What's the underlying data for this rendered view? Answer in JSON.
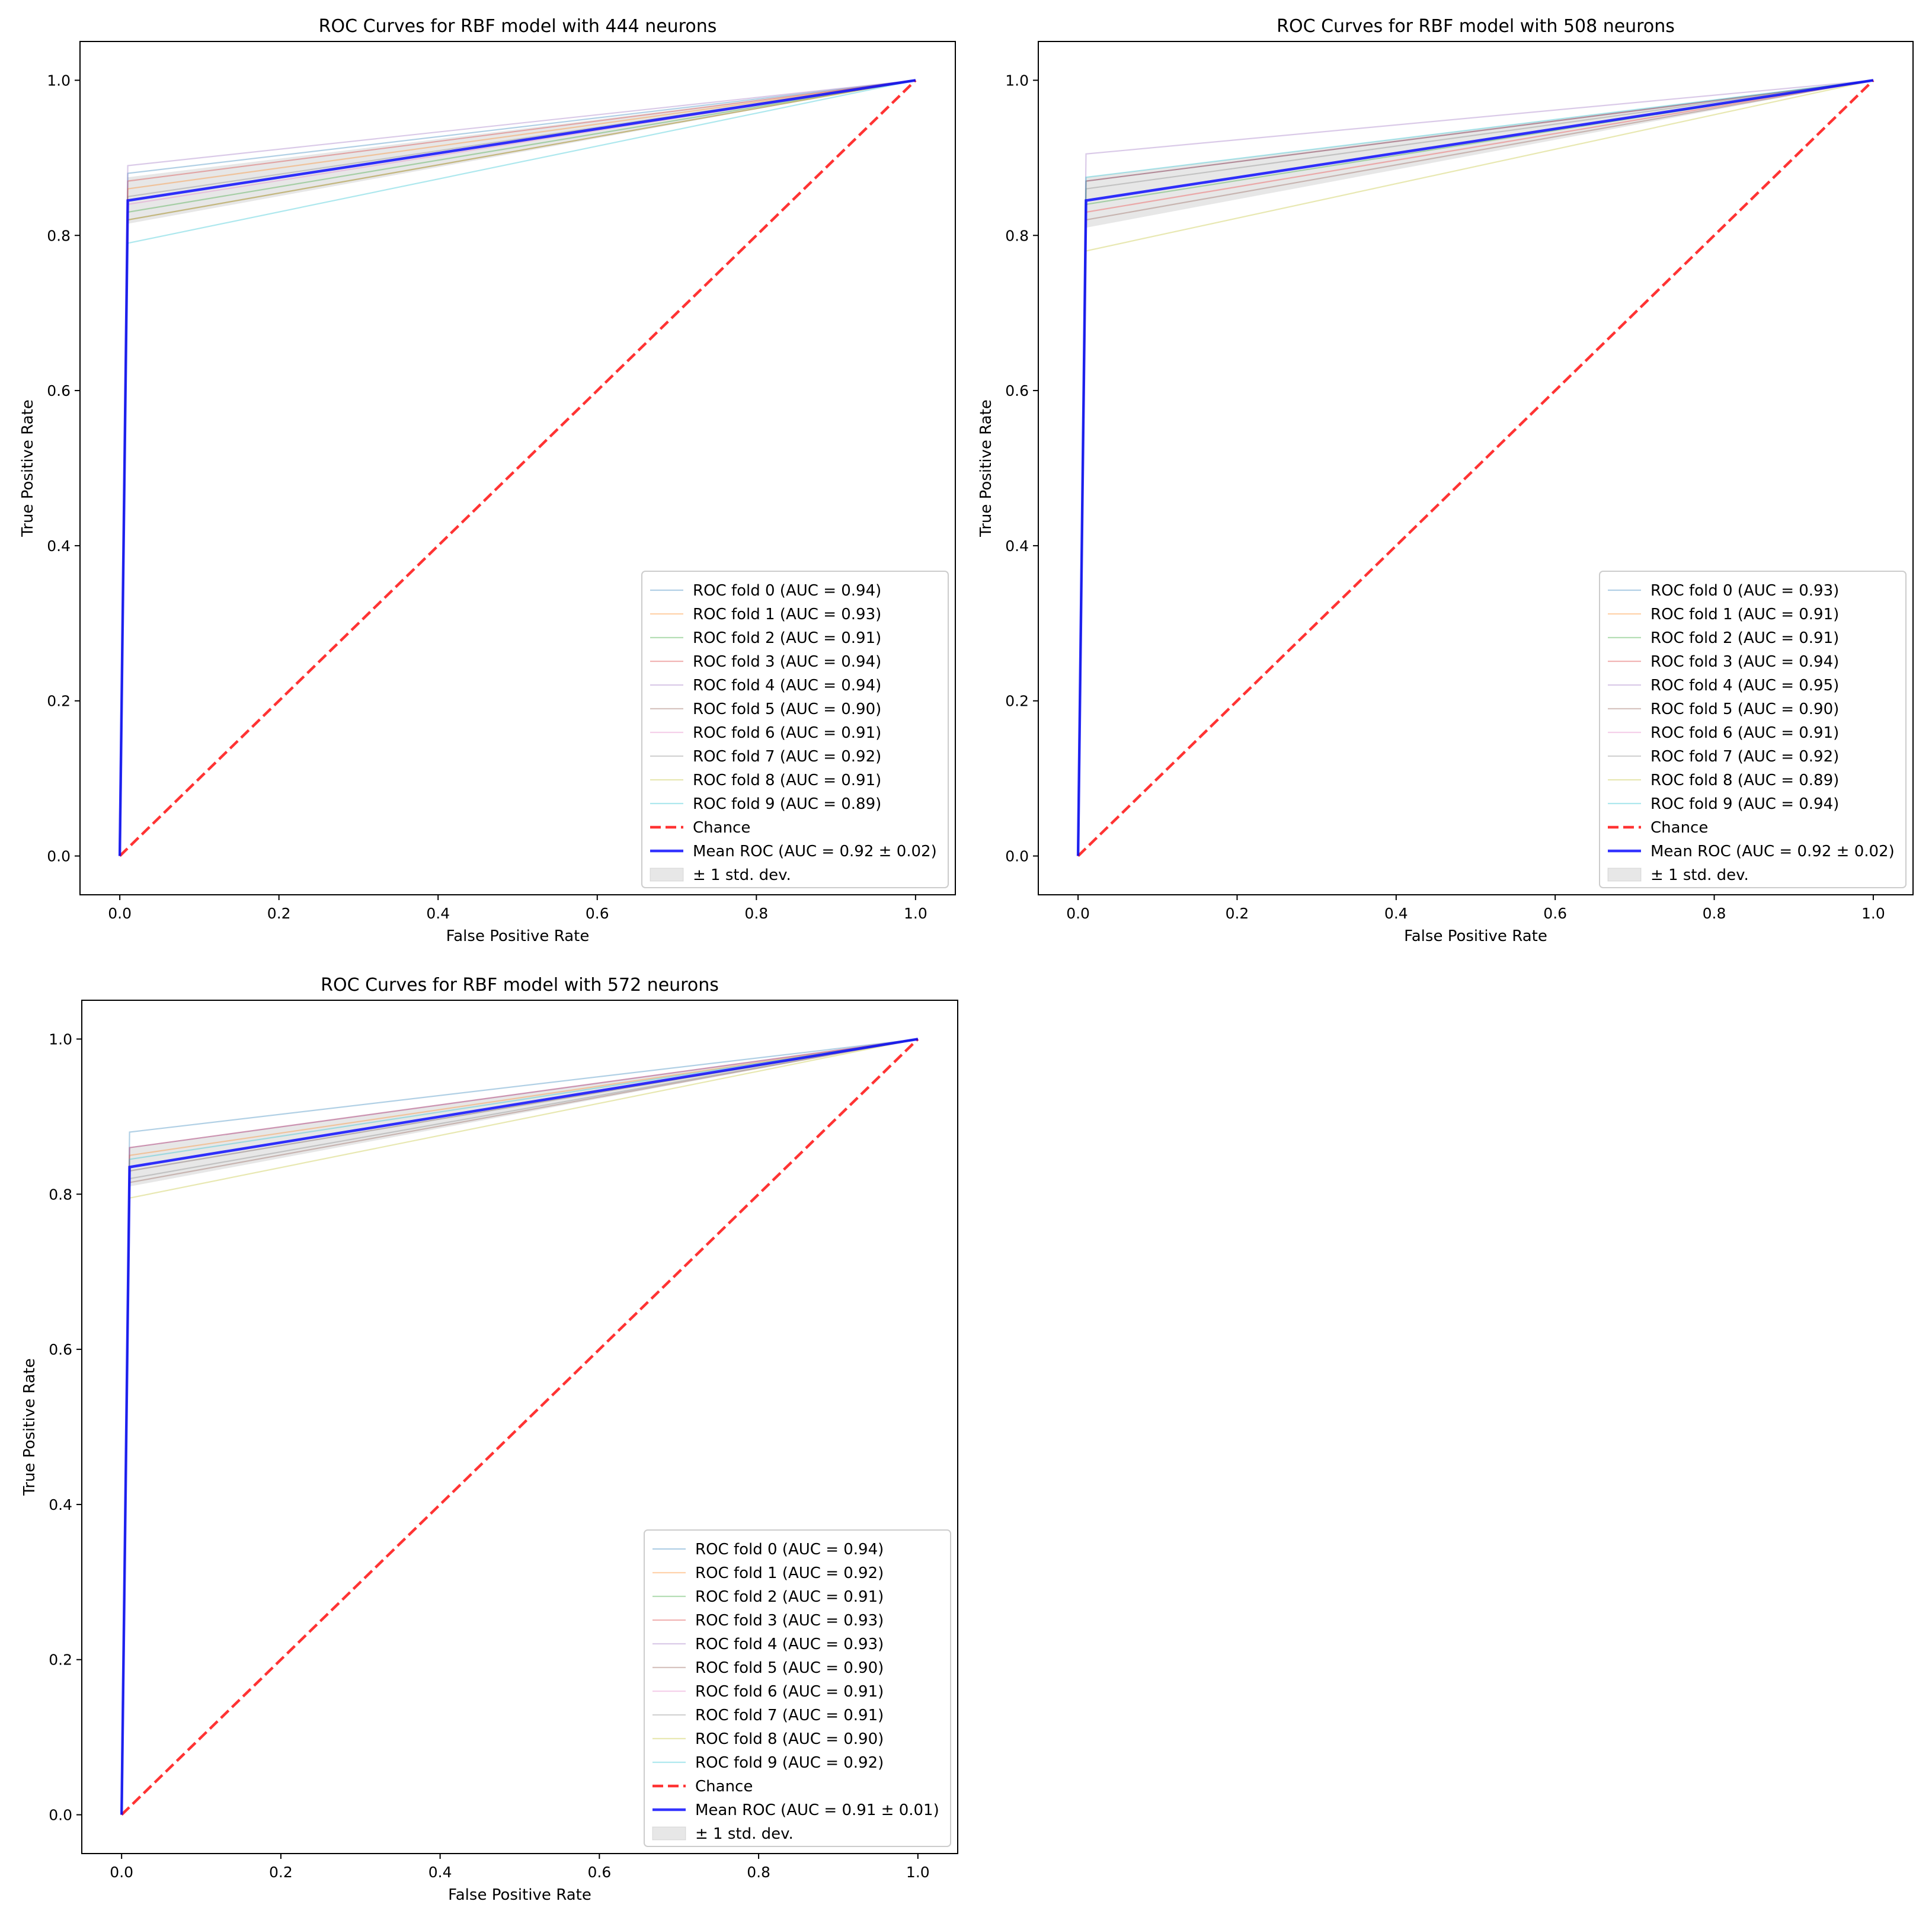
{
  "colors": {
    "folds": [
      "#1f77b4",
      "#ff7f0e",
      "#2ca02c",
      "#d62728",
      "#9467bd",
      "#8c564b",
      "#e377c2",
      "#7f7f7f",
      "#bcbd22",
      "#17becf"
    ],
    "chance": "#ff0000",
    "mean": "#0000ff",
    "band": "#bbbbbb",
    "axes": "#000000"
  },
  "chart_data": [
    {
      "type": "line",
      "title": "ROC Curves for RBF model with 444 neurons",
      "xlabel": "False Positive Rate",
      "ylabel": "True Positive Rate",
      "xlim": [
        -0.05,
        1.05
      ],
      "ylim": [
        -0.05,
        1.05
      ],
      "xticks": [
        "0.0",
        "0.2",
        "0.4",
        "0.6",
        "0.8",
        "1.0"
      ],
      "yticks": [
        "0.0",
        "0.2",
        "0.4",
        "0.6",
        "0.8",
        "1.0"
      ],
      "legend_position": "lower-right",
      "folds": [
        {
          "label": "ROC fold 0 (AUC = 0.94)",
          "fpr": [
            0,
            0.01,
            1
          ],
          "tpr": [
            0,
            0.88,
            1
          ]
        },
        {
          "label": "ROC fold 1 (AUC = 0.93)",
          "fpr": [
            0,
            0.01,
            1
          ],
          "tpr": [
            0,
            0.86,
            1
          ]
        },
        {
          "label": "ROC fold 2 (AUC = 0.91)",
          "fpr": [
            0,
            0.01,
            1
          ],
          "tpr": [
            0,
            0.83,
            1
          ]
        },
        {
          "label": "ROC fold 3 (AUC = 0.94)",
          "fpr": [
            0,
            0.01,
            1
          ],
          "tpr": [
            0,
            0.87,
            1
          ]
        },
        {
          "label": "ROC fold 4 (AUC = 0.94)",
          "fpr": [
            0,
            0.01,
            1
          ],
          "tpr": [
            0,
            0.89,
            1
          ]
        },
        {
          "label": "ROC fold 5 (AUC = 0.90)",
          "fpr": [
            0,
            0.01,
            1
          ],
          "tpr": [
            0,
            0.82,
            1
          ]
        },
        {
          "label": "ROC fold 6 (AUC = 0.91)",
          "fpr": [
            0,
            0.01,
            1
          ],
          "tpr": [
            0,
            0.84,
            1
          ]
        },
        {
          "label": "ROC fold 7 (AUC = 0.92)",
          "fpr": [
            0,
            0.01,
            1
          ],
          "tpr": [
            0,
            0.85,
            1
          ]
        },
        {
          "label": "ROC fold 8 (AUC = 0.91)",
          "fpr": [
            0,
            0.01,
            1
          ],
          "tpr": [
            0,
            0.82,
            1
          ]
        },
        {
          "label": "ROC fold 9 (AUC = 0.89)",
          "fpr": [
            0,
            0.01,
            1
          ],
          "tpr": [
            0,
            0.79,
            1
          ]
        }
      ],
      "chance": {
        "label": "Chance",
        "x": [
          0,
          1
        ],
        "y": [
          0,
          1
        ]
      },
      "mean": {
        "label": "Mean ROC (AUC = 0.92 ± 0.02)",
        "fpr": [
          0,
          0.01,
          1
        ],
        "tpr": [
          0,
          0.845,
          1
        ]
      },
      "band": {
        "label": "± 1 std. dev.",
        "fpr": [
          0,
          0.01,
          1
        ],
        "upper": [
          0,
          0.875,
          1
        ],
        "lower": [
          0,
          0.815,
          1
        ]
      }
    },
    {
      "type": "line",
      "title": "ROC Curves for RBF model with 508 neurons",
      "xlabel": "False Positive Rate",
      "ylabel": "True Positive Rate",
      "xlim": [
        -0.05,
        1.05
      ],
      "ylim": [
        -0.05,
        1.05
      ],
      "xticks": [
        "0.0",
        "0.2",
        "0.4",
        "0.6",
        "0.8",
        "1.0"
      ],
      "yticks": [
        "0.0",
        "0.2",
        "0.4",
        "0.6",
        "0.8",
        "1.0"
      ],
      "legend_position": "lower-right",
      "folds": [
        {
          "label": "ROC fold 0 (AUC = 0.93)",
          "fpr": [
            0,
            0.01,
            1
          ],
          "tpr": [
            0,
            0.87,
            1
          ]
        },
        {
          "label": "ROC fold 1 (AUC = 0.91)",
          "fpr": [
            0,
            0.01,
            1
          ],
          "tpr": [
            0,
            0.83,
            1
          ]
        },
        {
          "label": "ROC fold 2 (AUC = 0.91)",
          "fpr": [
            0,
            0.01,
            1
          ],
          "tpr": [
            0,
            0.84,
            1
          ]
        },
        {
          "label": "ROC fold 3 (AUC = 0.94)",
          "fpr": [
            0,
            0.01,
            1
          ],
          "tpr": [
            0,
            0.87,
            1
          ]
        },
        {
          "label": "ROC fold 4 (AUC = 0.95)",
          "fpr": [
            0,
            0.01,
            1
          ],
          "tpr": [
            0,
            0.905,
            1
          ]
        },
        {
          "label": "ROC fold 5 (AUC = 0.90)",
          "fpr": [
            0,
            0.01,
            1
          ],
          "tpr": [
            0,
            0.82,
            1
          ]
        },
        {
          "label": "ROC fold 6 (AUC = 0.91)",
          "fpr": [
            0,
            0.01,
            1
          ],
          "tpr": [
            0,
            0.83,
            1
          ]
        },
        {
          "label": "ROC fold 7 (AUC = 0.92)",
          "fpr": [
            0,
            0.01,
            1
          ],
          "tpr": [
            0,
            0.86,
            1
          ]
        },
        {
          "label": "ROC fold 8 (AUC = 0.89)",
          "fpr": [
            0,
            0.01,
            1
          ],
          "tpr": [
            0,
            0.78,
            1
          ]
        },
        {
          "label": "ROC fold 9 (AUC = 0.94)",
          "fpr": [
            0,
            0.01,
            1
          ],
          "tpr": [
            0,
            0.875,
            1
          ]
        }
      ],
      "chance": {
        "label": "Chance",
        "x": [
          0,
          1
        ],
        "y": [
          0,
          1
        ]
      },
      "mean": {
        "label": "Mean ROC (AUC = 0.92 ± 0.02)",
        "fpr": [
          0,
          0.01,
          1
        ],
        "tpr": [
          0,
          0.845,
          1
        ]
      },
      "band": {
        "label": "± 1 std. dev.",
        "fpr": [
          0,
          0.01,
          1
        ],
        "upper": [
          0,
          0.875,
          1
        ],
        "lower": [
          0,
          0.81,
          1
        ]
      }
    },
    {
      "type": "line",
      "title": "ROC Curves for RBF model with 572 neurons",
      "xlabel": "False Positive Rate",
      "ylabel": "True Positive Rate",
      "xlim": [
        -0.05,
        1.05
      ],
      "ylim": [
        -0.05,
        1.05
      ],
      "xticks": [
        "0.0",
        "0.2",
        "0.4",
        "0.6",
        "0.8",
        "1.0"
      ],
      "yticks": [
        "0.0",
        "0.2",
        "0.4",
        "0.6",
        "0.8",
        "1.0"
      ],
      "legend_position": "lower-right",
      "folds": [
        {
          "label": "ROC fold 0 (AUC = 0.94)",
          "fpr": [
            0,
            0.01,
            1
          ],
          "tpr": [
            0,
            0.88,
            1
          ]
        },
        {
          "label": "ROC fold 1 (AUC = 0.92)",
          "fpr": [
            0,
            0.01,
            1
          ],
          "tpr": [
            0,
            0.85,
            1
          ]
        },
        {
          "label": "ROC fold 2 (AUC = 0.91)",
          "fpr": [
            0,
            0.01,
            1
          ],
          "tpr": [
            0,
            0.83,
            1
          ]
        },
        {
          "label": "ROC fold 3 (AUC = 0.93)",
          "fpr": [
            0,
            0.01,
            1
          ],
          "tpr": [
            0,
            0.86,
            1
          ]
        },
        {
          "label": "ROC fold 4 (AUC = 0.93)",
          "fpr": [
            0,
            0.01,
            1
          ],
          "tpr": [
            0,
            0.86,
            1
          ]
        },
        {
          "label": "ROC fold 5 (AUC = 0.90)",
          "fpr": [
            0,
            0.01,
            1
          ],
          "tpr": [
            0,
            0.815,
            1
          ]
        },
        {
          "label": "ROC fold 6 (AUC = 0.91)",
          "fpr": [
            0,
            0.01,
            1
          ],
          "tpr": [
            0,
            0.83,
            1
          ]
        },
        {
          "label": "ROC fold 7 (AUC = 0.91)",
          "fpr": [
            0,
            0.01,
            1
          ],
          "tpr": [
            0,
            0.82,
            1
          ]
        },
        {
          "label": "ROC fold 8 (AUC = 0.90)",
          "fpr": [
            0,
            0.01,
            1
          ],
          "tpr": [
            0,
            0.795,
            1
          ]
        },
        {
          "label": "ROC fold 9 (AUC = 0.92)",
          "fpr": [
            0,
            0.01,
            1
          ],
          "tpr": [
            0,
            0.845,
            1
          ]
        }
      ],
      "chance": {
        "label": "Chance",
        "x": [
          0,
          1
        ],
        "y": [
          0,
          1
        ]
      },
      "mean": {
        "label": "Mean ROC (AUC = 0.91 ± 0.01)",
        "fpr": [
          0,
          0.01,
          1
        ],
        "tpr": [
          0,
          0.835,
          1
        ]
      },
      "band": {
        "label": "± 1 std. dev.",
        "fpr": [
          0,
          0.01,
          1
        ],
        "upper": [
          0,
          0.86,
          1
        ],
        "lower": [
          0,
          0.81,
          1
        ]
      }
    }
  ]
}
